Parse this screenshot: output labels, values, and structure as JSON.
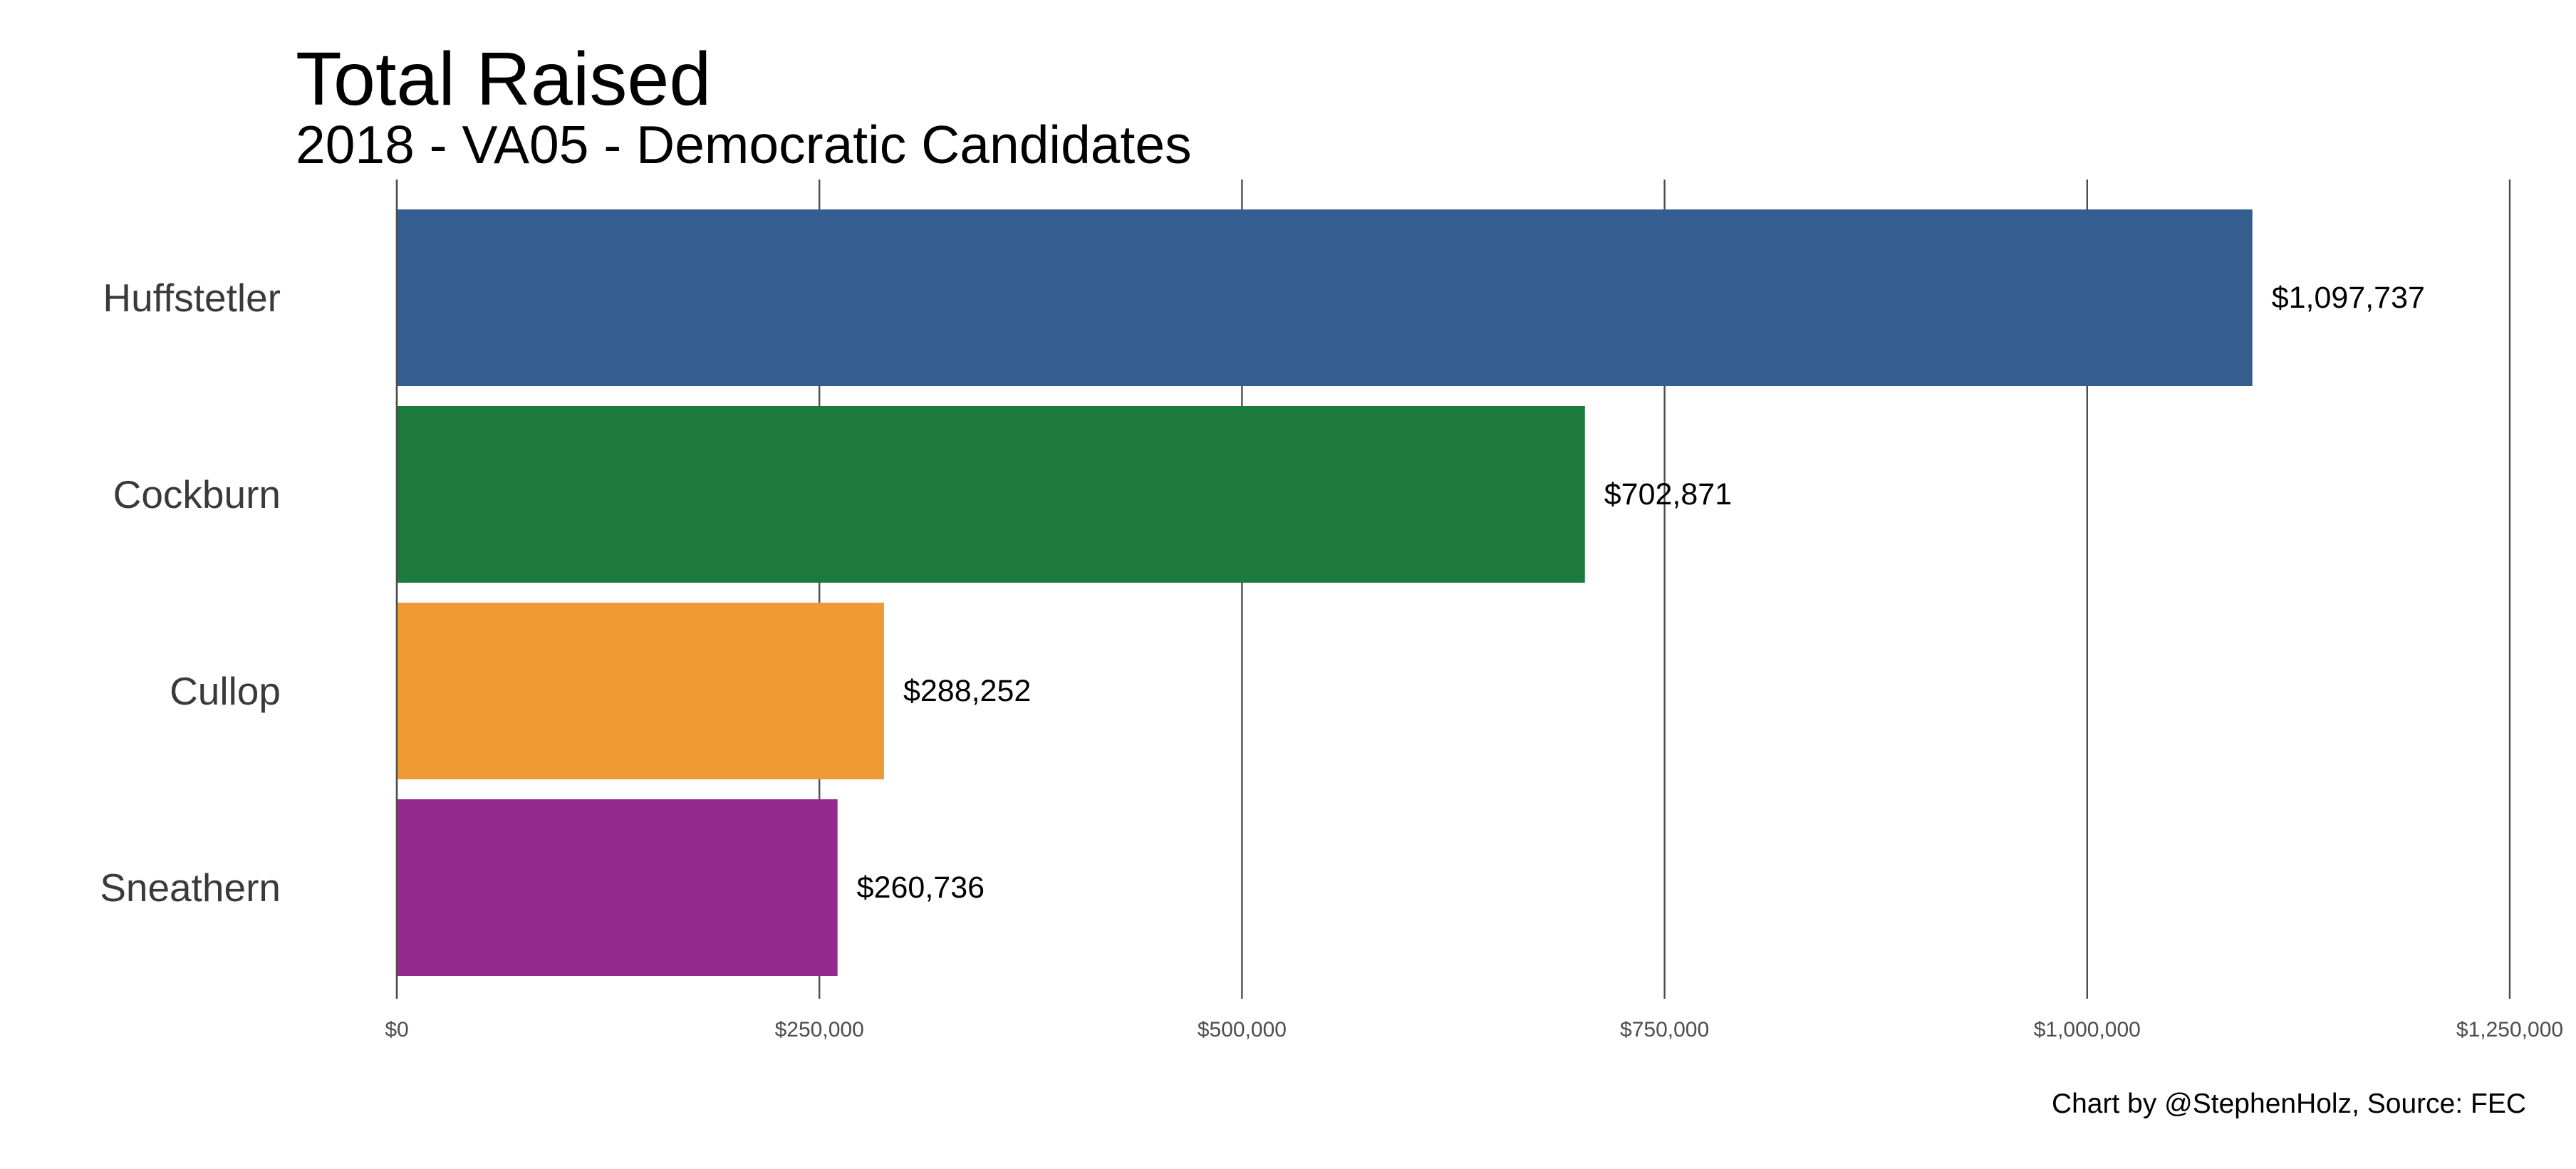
{
  "chart_data": {
    "type": "bar",
    "orientation": "horizontal",
    "title": "Total Raised",
    "subtitle": "2018 - VA05 - Democratic Candidates",
    "caption": "Chart by @StephenHolz, Source: FEC",
    "categories": [
      "Huffstetler",
      "Cockburn",
      "Cullop",
      "Sneathern"
    ],
    "values": [
      1097737,
      702871,
      288252,
      260736
    ],
    "value_labels": [
      "$1,097,737",
      "$702,871",
      "$288,252",
      "$260,736"
    ],
    "colors": [
      "#335e8f",
      "#1b7a3c",
      "#ef9b35",
      "#952a8d"
    ],
    "xlim": [
      0,
      1250000
    ],
    "x_ticks": [
      0,
      250000,
      500000,
      750000,
      1000000,
      1250000
    ],
    "x_tick_labels": [
      "$0",
      "$250,000",
      "$500,000",
      "$750,000",
      "$1,000,000",
      "$1,250,000"
    ],
    "xlabel": "",
    "ylabel": "",
    "grid": "vertical-major",
    "legend": "none"
  }
}
